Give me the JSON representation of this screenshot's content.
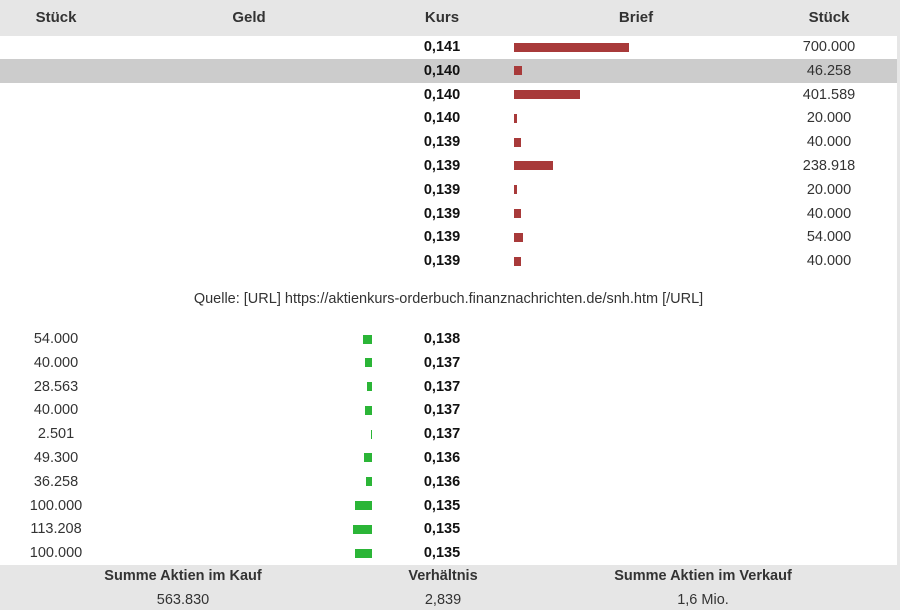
{
  "header": {
    "bid_qty": "Stück",
    "bid": "Geld",
    "price": "Kurs",
    "ask": "Brief",
    "ask_qty": "Stück"
  },
  "asks": [
    {
      "price": "0,141",
      "qty": "700.000"
    },
    {
      "price": "0,140",
      "qty": "46.258"
    },
    {
      "price": "0,140",
      "qty": "401.589"
    },
    {
      "price": "0,140",
      "qty": "20.000"
    },
    {
      "price": "0,139",
      "qty": "40.000"
    },
    {
      "price": "0,139",
      "qty": "238.918"
    },
    {
      "price": "0,139",
      "qty": "20.000"
    },
    {
      "price": "0,139",
      "qty": "40.000"
    },
    {
      "price": "0,139",
      "qty": "54.000"
    },
    {
      "price": "0,139",
      "qty": "40.000"
    }
  ],
  "source": "Quelle: [URL] https://aktienkurs-orderbuch.finanznachrichten.de/snh.htm [/URL]",
  "bids": [
    {
      "qty": "54.000",
      "price": "0,138"
    },
    {
      "qty": "40.000",
      "price": "0,137"
    },
    {
      "qty": "28.563",
      "price": "0,137"
    },
    {
      "qty": "40.000",
      "price": "0,137"
    },
    {
      "qty": "2.501",
      "price": "0,137"
    },
    {
      "qty": "49.300",
      "price": "0,136"
    },
    {
      "qty": "36.258",
      "price": "0,136"
    },
    {
      "qty": "100.000",
      "price": "0,135"
    },
    {
      "qty": "113.208",
      "price": "0,135"
    },
    {
      "qty": "100.000",
      "price": "0,135"
    }
  ],
  "footer": {
    "buy_label": "Summe Aktien im Kauf",
    "buy_value": "563.830",
    "ratio_label": "Verhältnis",
    "ratio_value": "2,839",
    "sell_label": "Summe Aktien im Verkauf",
    "sell_value": "1,6 Mio."
  },
  "colors": {
    "ask_bar": "#a83a3a",
    "bid_bar": "#2bb537",
    "highlight_row": "#cccccc"
  }
}
